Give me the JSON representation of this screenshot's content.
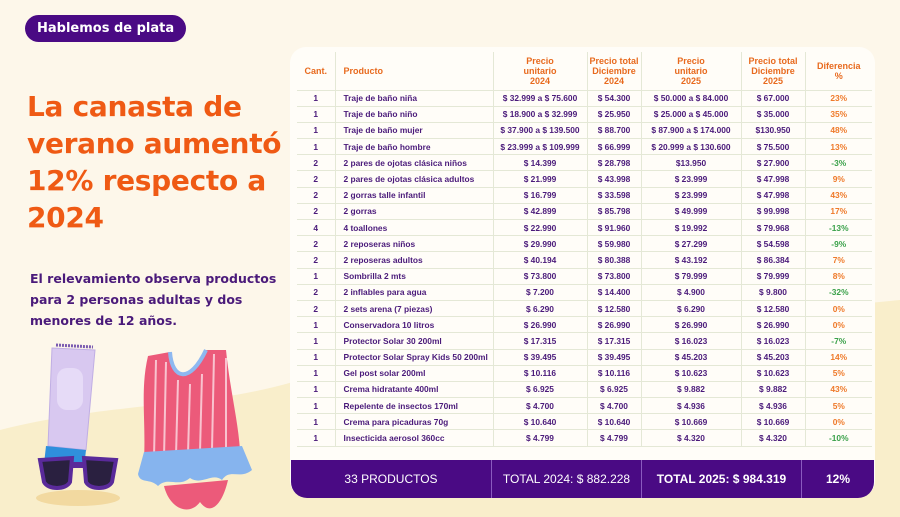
{
  "badge": "Hablemos de plata",
  "headline": "La canasta de verano aumentó 12% respecto a 2024",
  "subtext": "El relevamiento observa productos para 2 personas adultas y dos menores de 12 años.",
  "colors": {
    "brand_purple": "#4a0a84",
    "headline_orange": "#ef5a14",
    "increase_orange": "#ef7a2a",
    "decrease_green": "#3aa14a",
    "background": "#fdf7ea"
  },
  "table": {
    "headers": {
      "cant": "Cant.",
      "producto": "Producto",
      "unit2024": [
        "Precio",
        "unitario",
        "2024"
      ],
      "total2024": [
        "Precio total",
        "Diciembre",
        "2024"
      ],
      "unit2025": [
        "Precio",
        "unitario",
        "2025"
      ],
      "total2025": [
        "Precio total",
        "Diciembre",
        "2025"
      ],
      "diff": [
        "Diferencia",
        "%"
      ]
    },
    "rows": [
      {
        "cant": "1",
        "producto": "Traje de baño niña",
        "unit2024": "$ 32.999 a $ 75.600",
        "total2024": "$ 54.300",
        "unit2025": "$ 50.000 a $ 84.000",
        "total2025": "$ 67.000",
        "diff": "23%",
        "trend": "pos"
      },
      {
        "cant": "1",
        "producto": "Traje de baño niño",
        "unit2024": "$ 18.900 a $ 32.999",
        "total2024": "$ 25.950",
        "unit2025": "$ 25.000 a $ 45.000",
        "total2025": "$ 35.000",
        "diff": "35%",
        "trend": "pos"
      },
      {
        "cant": "1",
        "producto": "Traje de baño mujer",
        "unit2024": "$ 37.900 a $ 139.500",
        "total2024": "$ 88.700",
        "unit2025": "$ 87.900 a $ 174.000",
        "total2025": "$130.950",
        "diff": "48%",
        "trend": "pos"
      },
      {
        "cant": "1",
        "producto": "Traje de baño hombre",
        "unit2024": "$ 23.999 a $ 109.999",
        "total2024": "$ 66.999",
        "unit2025": "$ 20.999 a $ 130.600",
        "total2025": "$ 75.500",
        "diff": "13%",
        "trend": "pos"
      },
      {
        "cant": "2",
        "producto": "2 pares de ojotas clásica niños",
        "unit2024": "$ 14.399",
        "total2024": "$ 28.798",
        "unit2025": "$13.950",
        "total2025": "$ 27.900",
        "diff": "-3%",
        "trend": "neg"
      },
      {
        "cant": "2",
        "producto": "2 pares de ojotas clásica adultos",
        "unit2024": "$ 21.999",
        "total2024": "$ 43.998",
        "unit2025": "$ 23.999",
        "total2025": "$ 47.998",
        "diff": "9%",
        "trend": "pos"
      },
      {
        "cant": "2",
        "producto": "2 gorras talle infantil",
        "unit2024": "$ 16.799",
        "total2024": "$ 33.598",
        "unit2025": "$ 23.999",
        "total2025": "$ 47.998",
        "diff": "43%",
        "trend": "pos"
      },
      {
        "cant": "2",
        "producto": "2 gorras",
        "unit2024": "$ 42.899",
        "total2024": "$ 85.798",
        "unit2025": "$ 49.999",
        "total2025": "$ 99.998",
        "diff": "17%",
        "trend": "pos"
      },
      {
        "cant": "4",
        "producto": "4 toallones",
        "unit2024": "$ 22.990",
        "total2024": "$ 91.960",
        "unit2025": "$ 19.992",
        "total2025": "$ 79.968",
        "diff": "-13%",
        "trend": "neg"
      },
      {
        "cant": "2",
        "producto": "2 reposeras niños",
        "unit2024": "$ 29.990",
        "total2024": "$ 59.980",
        "unit2025": "$ 27.299",
        "total2025": "$ 54.598",
        "diff": "-9%",
        "trend": "neg"
      },
      {
        "cant": "2",
        "producto": "2 reposeras adultos",
        "unit2024": "$ 40.194",
        "total2024": "$ 80.388",
        "unit2025": "$ 43.192",
        "total2025": "$ 86.384",
        "diff": "7%",
        "trend": "pos"
      },
      {
        "cant": "1",
        "producto": "Sombrilla 2 mts",
        "unit2024": "$ 73.800",
        "total2024": "$ 73.800",
        "unit2025": "$ 79.999",
        "total2025": "$ 79.999",
        "diff": "8%",
        "trend": "pos"
      },
      {
        "cant": "2",
        "producto": "2 inflables para agua",
        "unit2024": "$ 7.200",
        "total2024": "$ 14.400",
        "unit2025": "$ 4.900",
        "total2025": "$ 9.800",
        "diff": "-32%",
        "trend": "neg"
      },
      {
        "cant": "2",
        "producto": "2 sets arena (7 piezas)",
        "unit2024": "$ 6.290",
        "total2024": "$ 12.580",
        "unit2025": "$ 6.290",
        "total2025": "$ 12.580",
        "diff": "0%",
        "trend": "pos"
      },
      {
        "cant": "1",
        "producto": "Conservadora 10 litros",
        "unit2024": "$ 26.990",
        "total2024": "$ 26.990",
        "unit2025": "$ 26.990",
        "total2025": "$ 26.990",
        "diff": "0%",
        "trend": "pos"
      },
      {
        "cant": "1",
        "producto": "Protector Solar 30 200ml",
        "unit2024": "$ 17.315",
        "total2024": "$ 17.315",
        "unit2025": "$ 16.023",
        "total2025": "$ 16.023",
        "diff": "-7%",
        "trend": "neg"
      },
      {
        "cant": "1",
        "producto": "Protector Solar Spray Kids 50 200ml",
        "unit2024": "$ 39.495",
        "total2024": "$ 39.495",
        "unit2025": "$ 45.203",
        "total2025": "$ 45.203",
        "diff": "14%",
        "trend": "pos"
      },
      {
        "cant": "1",
        "producto": "Gel post solar 200ml",
        "unit2024": "$ 10.116",
        "total2024": "$ 10.116",
        "unit2025": "$ 10.623",
        "total2025": "$ 10.623",
        "diff": "5%",
        "trend": "pos"
      },
      {
        "cant": "1",
        "producto": "Crema hidratante 400ml",
        "unit2024": "$ 6.925",
        "total2024": "$ 6.925",
        "unit2025": "$ 9.882",
        "total2025": "$ 9.882",
        "diff": "43%",
        "trend": "pos"
      },
      {
        "cant": "1",
        "producto": "Repelente de insectos 170ml",
        "unit2024": "$ 4.700",
        "total2024": "$ 4.700",
        "unit2025": "$ 4.936",
        "total2025": "$ 4.936",
        "diff": "5%",
        "trend": "pos"
      },
      {
        "cant": "1",
        "producto": "Crema para picaduras 70g",
        "unit2024": "$ 10.640",
        "total2024": "$ 10.640",
        "unit2025": "$ 10.669",
        "total2025": "$ 10.669",
        "diff": "0%",
        "trend": "pos"
      },
      {
        "cant": "1",
        "producto": "Insecticida aerosol 360cc",
        "unit2024": "$ 4.799",
        "total2024": "$ 4.799",
        "unit2025": "$ 4.320",
        "total2025": "$ 4.320",
        "diff": "-10%",
        "trend": "neg"
      }
    ]
  },
  "footer": {
    "count": "33 PRODUCTOS",
    "total2024": "TOTAL 2024: $  882.228",
    "total2025": "TOTAL 2025: $ 984.319",
    "diff": "12%"
  },
  "illustrations": [
    "sunscreen-tube",
    "sunglasses",
    "girls-swimsuit"
  ]
}
